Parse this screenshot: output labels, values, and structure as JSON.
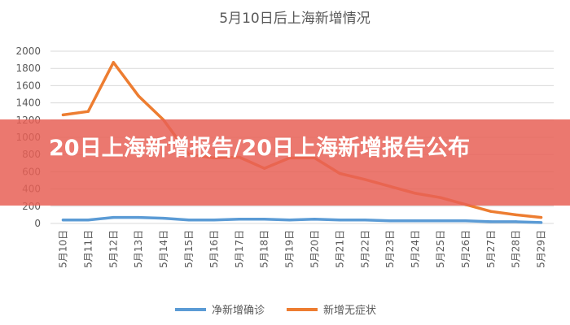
{
  "banner": {
    "headline": "20日上海新增报告/20日上海新增报告公布"
  },
  "colors": {
    "series_confirmed": "#5B9BD5",
    "series_asymptomatic": "#ED7D31",
    "banner": "#E86056",
    "grid": "#D9D9D9"
  },
  "chart_data": {
    "type": "line",
    "title": "5月10日后上海新增情况",
    "xlabel": "",
    "ylabel": "",
    "ylim": [
      0,
      2000
    ],
    "yticks": [
      0,
      200,
      400,
      600,
      800,
      1000,
      1200,
      1400,
      1600,
      1800,
      2000
    ],
    "grid": true,
    "legend_position": "bottom",
    "categories": [
      "5月10日",
      "5月11日",
      "5月12日",
      "5月13日",
      "5月14日",
      "5月15日",
      "5月16日",
      "5月17日",
      "5月18日",
      "5月19日",
      "5月20日",
      "5月21日",
      "5月22日",
      "5月23日",
      "5月24日",
      "5月25日",
      "5月26日",
      "5月27日",
      "5月28日",
      "5月29日"
    ],
    "series": [
      {
        "name": "净新增确诊",
        "values": [
          40,
          40,
          70,
          70,
          60,
          40,
          40,
          50,
          50,
          40,
          50,
          40,
          40,
          30,
          30,
          30,
          30,
          20,
          20,
          10
        ]
      },
      {
        "name": "新增无症状",
        "values": [
          1260,
          1300,
          1870,
          1480,
          1200,
          800,
          760,
          770,
          640,
          760,
          760,
          580,
          510,
          430,
          350,
          300,
          220,
          140,
          100,
          70
        ]
      }
    ]
  }
}
